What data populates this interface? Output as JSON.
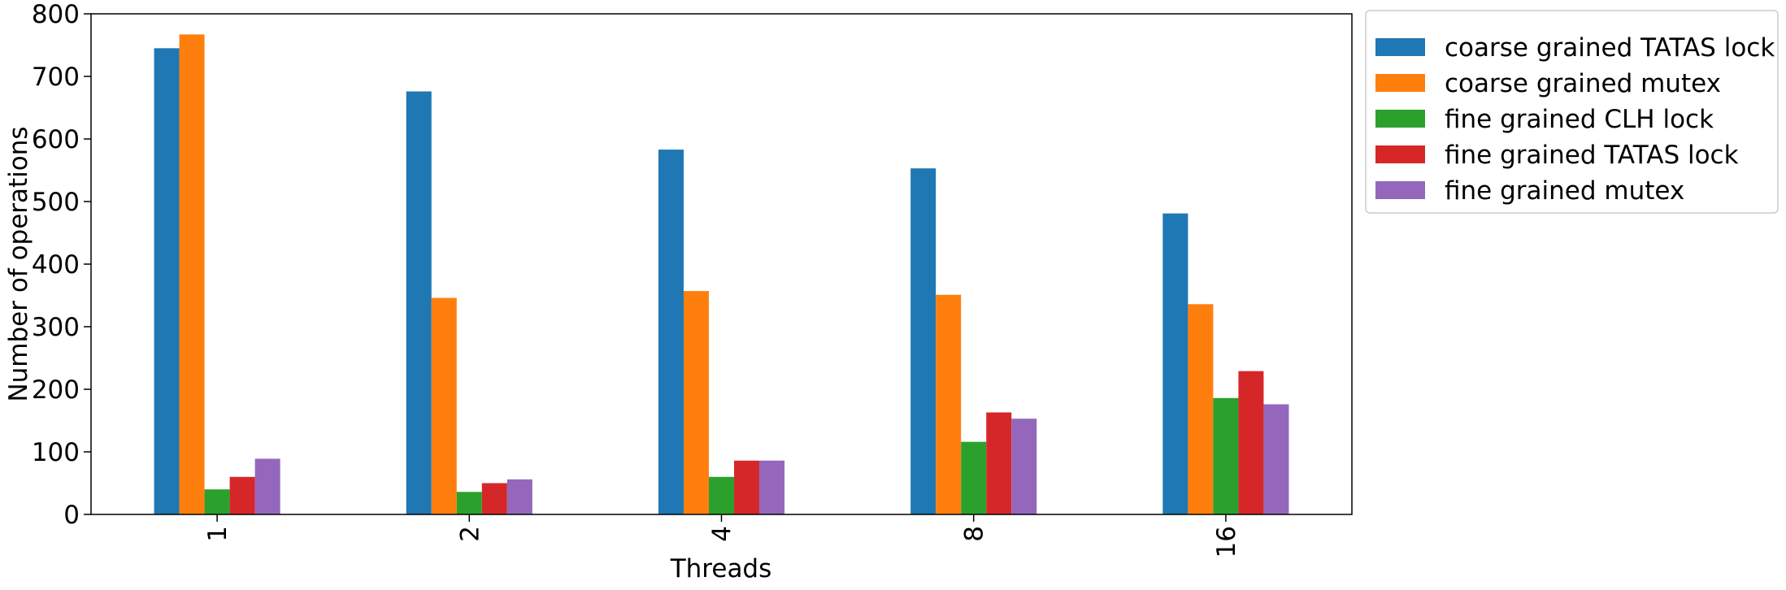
{
  "chart_data": {
    "type": "bar",
    "title": "",
    "xlabel": "Threads",
    "ylabel": "Number of operations",
    "categories": [
      "1",
      "2",
      "4",
      "8",
      "16"
    ],
    "ylim": [
      0,
      800
    ],
    "yticks": [
      0,
      100,
      200,
      300,
      400,
      500,
      600,
      700,
      800
    ],
    "grid": false,
    "legend_position": "outside upper right",
    "series": [
      {
        "name": "coarse grained TATAS lock",
        "color": "#1f77b4",
        "values": [
          745,
          676,
          583,
          553,
          481
        ]
      },
      {
        "name": "coarse grained mutex",
        "color": "#ff7f0e",
        "values": [
          767,
          346,
          357,
          351,
          336
        ]
      },
      {
        "name": "fine grained CLH lock",
        "color": "#2ca02c",
        "values": [
          40,
          36,
          60,
          116,
          186
        ]
      },
      {
        "name": "fine grained TATAS lock",
        "color": "#d62728",
        "values": [
          60,
          50,
          86,
          163,
          229
        ]
      },
      {
        "name": "fine grained mutex",
        "color": "#9467bd",
        "values": [
          89,
          56,
          86,
          153,
          176
        ]
      }
    ]
  }
}
